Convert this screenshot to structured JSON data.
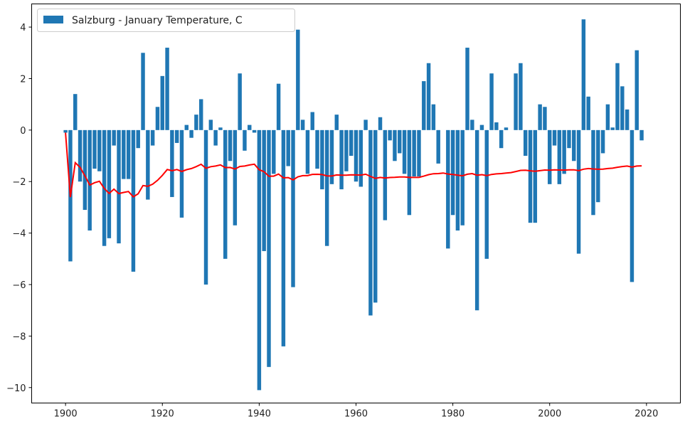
{
  "chart_data": {
    "type": "bar",
    "title": "",
    "xlabel": "",
    "ylabel": "",
    "legend": {
      "label": "Salzburg - January Temperature, C",
      "placement": "top-left"
    },
    "xlim": [
      1893,
      2027
    ],
    "ylim": [
      -10.6,
      4.9
    ],
    "xticks": [
      1900,
      1920,
      1940,
      1960,
      1980,
      2000,
      2020
    ],
    "yticks": [
      4,
      2,
      0,
      -2,
      -4,
      -6,
      -8,
      -10
    ],
    "colors": {
      "bars": "#1f77b4",
      "line": "#ff0000"
    },
    "start_year": 1900,
    "values": [
      -0.1,
      -5.1,
      1.4,
      -2.0,
      -3.1,
      -3.9,
      -1.5,
      -1.6,
      -4.5,
      -4.2,
      -0.6,
      -4.4,
      -1.9,
      -1.9,
      -5.5,
      -0.7,
      3.0,
      -2.7,
      -0.6,
      0.9,
      2.1,
      3.2,
      -2.6,
      -0.5,
      -3.4,
      0.2,
      -0.3,
      0.6,
      1.2,
      -6.0,
      0.4,
      -0.6,
      0.1,
      -5.0,
      -1.2,
      -3.7,
      2.2,
      -0.8,
      0.2,
      -0.1,
      -10.1,
      -4.7,
      -9.2,
      -1.7,
      1.8,
      -8.4,
      -1.4,
      -6.1,
      3.9,
      0.4,
      -1.7,
      0.7,
      -1.5,
      -2.3,
      -4.5,
      -2.1,
      0.6,
      -2.3,
      -1.6,
      -1.0,
      -2.0,
      -2.2,
      0.4,
      -7.2,
      -6.7,
      0.5,
      -3.5,
      -0.4,
      -1.2,
      -0.9,
      -1.7,
      -3.3,
      -1.8,
      -1.8,
      1.9,
      2.6,
      1.0,
      -1.3,
      0.0,
      -4.6,
      -3.3,
      -3.9,
      -3.7,
      3.2,
      0.4,
      -7.0,
      0.2,
      -5.0,
      2.2,
      0.3,
      -0.7,
      0.1,
      0.0,
      2.2,
      2.6,
      -1.0,
      -3.6,
      -3.6,
      1.0,
      0.9,
      -2.1,
      -0.6,
      -2.1,
      -1.7,
      -0.7,
      -1.2,
      -4.8,
      4.3,
      1.3,
      -3.3,
      -2.8,
      -0.9,
      1.0,
      0.1,
      2.6,
      1.7,
      0.8,
      -5.9,
      3.1,
      -0.4
    ],
    "line_series": {
      "name": "expanding mean",
      "method": "cumulative mean of values"
    }
  }
}
